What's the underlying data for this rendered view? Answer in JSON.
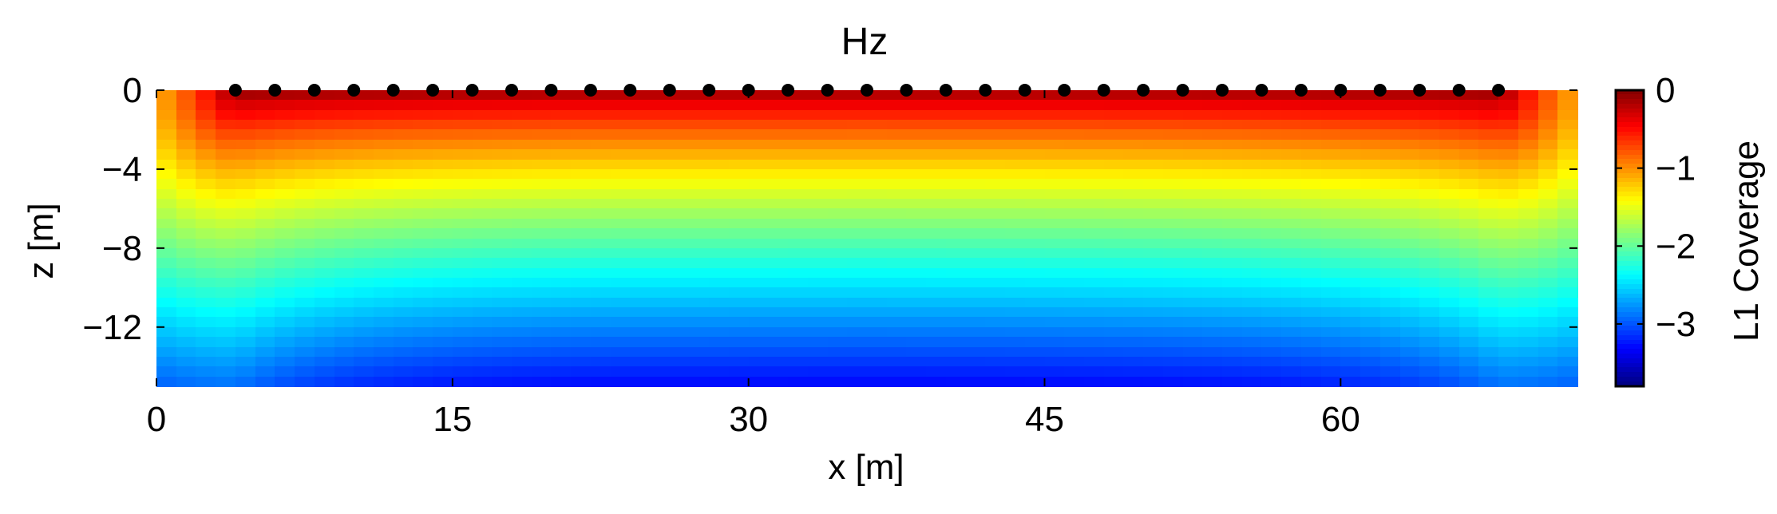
{
  "chart_data": {
    "type": "heatmap",
    "title": "Hz",
    "xlabel": "x [m]",
    "ylabel": "z [m]",
    "xlim": [
      0,
      72
    ],
    "ylim": [
      -15,
      0
    ],
    "xticks": [
      {
        "value": 0,
        "label": "0"
      },
      {
        "value": 15,
        "label": "15"
      },
      {
        "value": 30,
        "label": "30"
      },
      {
        "value": 45,
        "label": "45"
      },
      {
        "value": 60,
        "label": "60"
      }
    ],
    "yticks": [
      {
        "value": 0,
        "label": "0"
      },
      {
        "value": -4,
        "label": "−4"
      },
      {
        "value": -8,
        "label": "−8"
      },
      {
        "value": -12,
        "label": "−12"
      }
    ],
    "colorbar": {
      "label": "L1 Coverage",
      "clim": [
        -3.8,
        0
      ],
      "colormap": "jet",
      "ticks": [
        {
          "value": 0,
          "label": "0"
        },
        {
          "value": -1,
          "label": "−1"
        },
        {
          "value": -2,
          "label": "−2"
        },
        {
          "value": -3,
          "label": "−3"
        }
      ]
    },
    "field_description": "log10 coverage; near 0 at surface beneath receivers, decreasing with depth to about -3.8 at bottom corners",
    "receivers": {
      "z": 0,
      "x": [
        4,
        6,
        8,
        10,
        12,
        14,
        16,
        18,
        20,
        22,
        24,
        26,
        28,
        30,
        32,
        34,
        36,
        38,
        40,
        42,
        44,
        46,
        48,
        50,
        52,
        54,
        56,
        58,
        60,
        62,
        64,
        66,
        68
      ],
      "color": "#000000"
    },
    "grid": false
  }
}
